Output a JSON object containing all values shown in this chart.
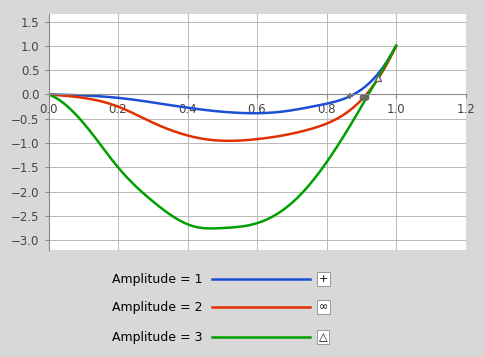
{
  "xlim": [
    0,
    1.2
  ],
  "ylim": [
    -3.2,
    1.7
  ],
  "plot_ylim": [
    -3.2,
    1.65
  ],
  "xticks": [
    0,
    0.2,
    0.4,
    0.6,
    0.8,
    1.0,
    1.2
  ],
  "yticks": [
    -3,
    -2.5,
    -2,
    -1.5,
    -1,
    -0.5,
    0,
    0.5,
    1,
    1.5
  ],
  "line_colors": [
    "#1B4FD4",
    "#E03000",
    "#00A000"
  ],
  "legend_labels": [
    "Amplitude = 1",
    "Amplitude = 2",
    "Amplitude = 3"
  ],
  "blue_x": [
    0.0,
    0.1,
    0.2,
    0.35,
    0.55,
    0.65,
    0.78,
    0.9,
    1.0
  ],
  "blue_y": [
    0.0,
    -0.02,
    -0.07,
    -0.22,
    -0.38,
    -0.37,
    -0.22,
    0.1,
    1.0
  ],
  "red_x": [
    0.0,
    0.1,
    0.2,
    0.3,
    0.45,
    0.6,
    0.75,
    0.88,
    1.0
  ],
  "red_y": [
    0.0,
    -0.07,
    -0.25,
    -0.58,
    -0.92,
    -0.92,
    -0.72,
    -0.25,
    1.0
  ],
  "green_x": [
    0.0,
    0.07,
    0.13,
    0.2,
    0.3,
    0.42,
    0.5,
    0.6,
    0.72,
    0.85,
    1.0
  ],
  "green_y": [
    0.0,
    -0.35,
    -0.85,
    -1.5,
    -2.2,
    -2.72,
    -2.75,
    -2.65,
    -2.1,
    -0.85,
    1.0
  ],
  "background_color": "#D8D8D8",
  "plot_bg_color": "#FFFFFF",
  "grid_color": "#B8B8B8",
  "axis_color": "#888888",
  "tick_color": "#444444",
  "legend_fontsize": 9,
  "tick_fontsize": 8.5,
  "linewidth": 1.8
}
